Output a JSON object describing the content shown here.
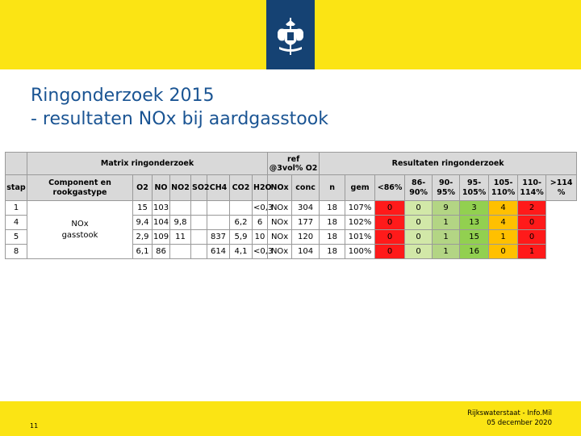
{
  "slide": {
    "title_line1": "Ringonderzoek 2015",
    "title_line2": "- resultaten NOx bij aardgasstook",
    "page_number": "11",
    "footer_org": "Rijkswaterstaat - Info.Mil",
    "footer_date": "05 december 2020"
  },
  "colors": {
    "yellow_bar": "#fbe414",
    "logo_blue": "#154273",
    "title_blue": "#1a5493",
    "red": "#ff1a1a",
    "light_green": "#d2e8a8",
    "dark_green": "#b3d584",
    "orange_yellow": "#ffc000",
    "green": "#92d050"
  },
  "logo": {
    "icon": "coat-of-arms-icon"
  },
  "table": {
    "group_headers": {
      "matrix": "Matrix ringonderzoek",
      "ref": "ref",
      "ref2": "@3vol% O2",
      "results": "Resultaten ringonderzoek"
    },
    "columns": [
      "stap",
      "Component en",
      "rookgastype",
      "O2",
      "NO",
      "NO2",
      "SO2",
      "CH4",
      "CO2",
      "H2O",
      "NOx",
      "conc",
      "n",
      "gem",
      "<86%",
      "86-",
      "90%",
      "90-",
      "95%",
      "95-",
      "105%",
      "105-",
      "110%",
      "110-",
      "114%",
      ">114",
      "%"
    ],
    "component_label_1": "NOx",
    "component_label_2": "gasstook",
    "rows": [
      {
        "stap": "1",
        "o2": "15",
        "no": "103",
        "no2": "",
        "so2": "",
        "ch4": "",
        "co2": "",
        "h2o": "<0,3",
        "nox": "NOx",
        "conc": "304",
        "n": "18",
        "gem": "107%",
        "b86": "0",
        "b90": "0",
        "b95": "9",
        "b105": "3",
        "b110": "4",
        "b114": "2"
      },
      {
        "stap": "4",
        "o2": "9,4",
        "no": "104",
        "no2": "9,8",
        "so2": "",
        "ch4": "",
        "co2": "6,2",
        "h2o": "6",
        "nox": "NOx",
        "conc": "177",
        "n": "18",
        "gem": "102%",
        "b86": "0",
        "b90": "0",
        "b95": "1",
        "b105": "13",
        "b110": "4",
        "b114": "0"
      },
      {
        "stap": "5",
        "o2": "2,9",
        "no": "109",
        "no2": "11",
        "so2": "",
        "ch4": "837",
        "co2": "5,9",
        "h2o": "10",
        "nox": "NOx",
        "conc": "120",
        "n": "18",
        "gem": "101%",
        "b86": "0",
        "b90": "0",
        "b95": "1",
        "b105": "15",
        "b110": "1",
        "b114": "0"
      },
      {
        "stap": "8",
        "o2": "6,1",
        "no": "86",
        "no2": "",
        "so2": "",
        "ch4": "614",
        "co2": "4,1",
        "h2o": "<0,3",
        "nox": "NOx",
        "conc": "104",
        "n": "18",
        "gem": "100%",
        "b86": "0",
        "b90": "0",
        "b95": "1",
        "b105": "16",
        "b110": "0",
        "b114": "1"
      }
    ]
  }
}
